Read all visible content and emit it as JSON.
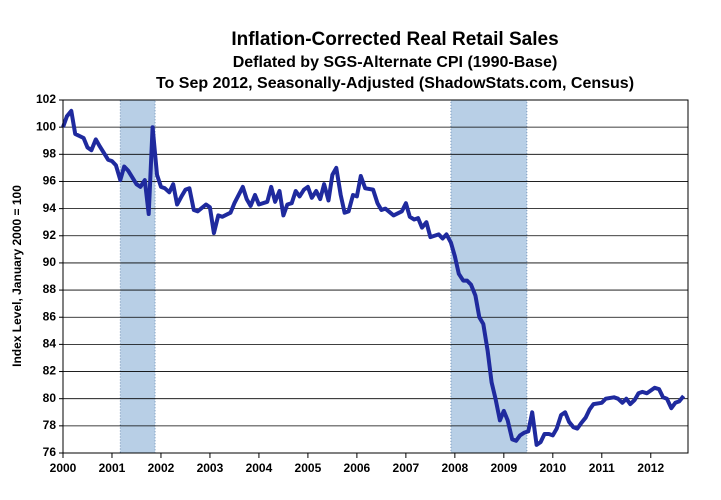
{
  "chart_data": {
    "type": "line",
    "title": "Inflation-Corrected Real Retail Sales",
    "subtitle": "Deflated by SGS-Alternate CPI (1990-Base)",
    "subtitle2": "To Sep 2012, Seasonally-Adjusted (ShadowStats.com, Census)",
    "ylabel": "Index Level, January 2000 = 100",
    "color": "#1f2a9e",
    "shade_color": "#b8cfe6",
    "grid": true,
    "shaded_regions": [
      {
        "start": 2001.17,
        "end": 2001.88
      },
      {
        "start": 2007.92,
        "end": 2009.47
      }
    ],
    "xlim": [
      2000,
      2012.76
    ],
    "xticks": [
      2000,
      2001,
      2002,
      2003,
      2004,
      2005,
      2006,
      2007,
      2008,
      2009,
      2010,
      2011,
      2012
    ],
    "ylim": [
      76,
      102
    ],
    "yticks": [
      76,
      78,
      80,
      82,
      84,
      86,
      88,
      90,
      92,
      94,
      96,
      98,
      100,
      102
    ],
    "x": [
      2000.0,
      2000.08,
      2000.17,
      2000.25,
      2000.42,
      2000.5,
      2000.58,
      2000.67,
      2000.75,
      2000.92,
      2001.0,
      2001.08,
      2001.17,
      2001.25,
      2001.33,
      2001.5,
      2001.58,
      2001.67,
      2001.75,
      2001.83,
      2001.92,
      2002.0,
      2002.08,
      2002.17,
      2002.25,
      2002.33,
      2002.42,
      2002.5,
      2002.58,
      2002.67,
      2002.75,
      2002.92,
      2003.0,
      2003.08,
      2003.17,
      2003.25,
      2003.42,
      2003.5,
      2003.67,
      2003.75,
      2003.83,
      2003.92,
      2004.0,
      2004.17,
      2004.25,
      2004.33,
      2004.42,
      2004.5,
      2004.58,
      2004.67,
      2004.75,
      2004.83,
      2004.92,
      2005.0,
      2005.08,
      2005.17,
      2005.25,
      2005.33,
      2005.42,
      2005.5,
      2005.58,
      2005.67,
      2005.75,
      2005.83,
      2005.92,
      2006.0,
      2006.08,
      2006.17,
      2006.33,
      2006.42,
      2006.5,
      2006.58,
      2006.75,
      2006.92,
      2007.0,
      2007.08,
      2007.17,
      2007.25,
      2007.33,
      2007.42,
      2007.5,
      2007.67,
      2007.75,
      2007.83,
      2007.92,
      2008.0,
      2008.08,
      2008.17,
      2008.25,
      2008.33,
      2008.42,
      2008.5,
      2008.58,
      2008.67,
      2008.75,
      2008.83,
      2008.92,
      2009.0,
      2009.08,
      2009.17,
      2009.25,
      2009.33,
      2009.42,
      2009.5,
      2009.58,
      2009.67,
      2009.75,
      2009.83,
      2009.92,
      2010.0,
      2010.08,
      2010.17,
      2010.25,
      2010.33,
      2010.42,
      2010.5,
      2010.58,
      2010.67,
      2010.75,
      2010.83,
      2011.0,
      2011.08,
      2011.25,
      2011.33,
      2011.42,
      2011.5,
      2011.58,
      2011.67,
      2011.75,
      2011.83,
      2011.92,
      2012.08,
      2012.17,
      2012.25,
      2012.33,
      2012.42,
      2012.5,
      2012.58,
      2012.67
    ],
    "values": [
      100.0,
      100.8,
      101.2,
      99.5,
      99.2,
      98.5,
      98.3,
      99.1,
      98.6,
      97.6,
      97.5,
      97.2,
      96.1,
      97.1,
      96.8,
      95.8,
      95.6,
      96.1,
      93.6,
      100.0,
      96.5,
      95.6,
      95.5,
      95.2,
      95.8,
      94.3,
      94.9,
      95.4,
      95.5,
      93.9,
      93.8,
      94.3,
      94.1,
      92.2,
      93.5,
      93.4,
      93.7,
      94.4,
      95.6,
      94.7,
      94.2,
      95.0,
      94.3,
      94.5,
      95.6,
      94.5,
      95.3,
      93.5,
      94.3,
      94.4,
      95.3,
      94.9,
      95.4,
      95.6,
      94.8,
      95.3,
      94.7,
      95.8,
      94.6,
      96.5,
      97.0,
      95.0,
      93.7,
      93.8,
      95.0,
      94.9,
      96.4,
      95.5,
      95.4,
      94.4,
      93.9,
      94.0,
      93.5,
      93.8,
      94.4,
      93.4,
      93.2,
      93.3,
      92.6,
      93.0,
      91.9,
      92.1,
      91.8,
      92.1,
      91.5,
      90.5,
      89.2,
      88.7,
      88.7,
      88.4,
      87.6,
      86.0,
      85.5,
      83.5,
      81.2,
      80.0,
      78.4,
      79.1,
      78.4,
      77.0,
      76.9,
      77.3,
      77.5,
      77.6,
      79.0,
      76.6,
      76.8,
      77.4,
      77.4,
      77.3,
      77.8,
      78.8,
      79.0,
      78.3,
      77.9,
      77.8,
      78.2,
      78.6,
      79.2,
      79.6,
      79.7,
      80.0,
      80.1,
      80.0,
      79.7,
      80.0,
      79.6,
      79.9,
      80.4,
      80.5,
      80.4,
      80.8,
      80.7,
      80.1,
      80.0,
      79.3,
      79.7,
      79.8,
      80.2
    ]
  }
}
